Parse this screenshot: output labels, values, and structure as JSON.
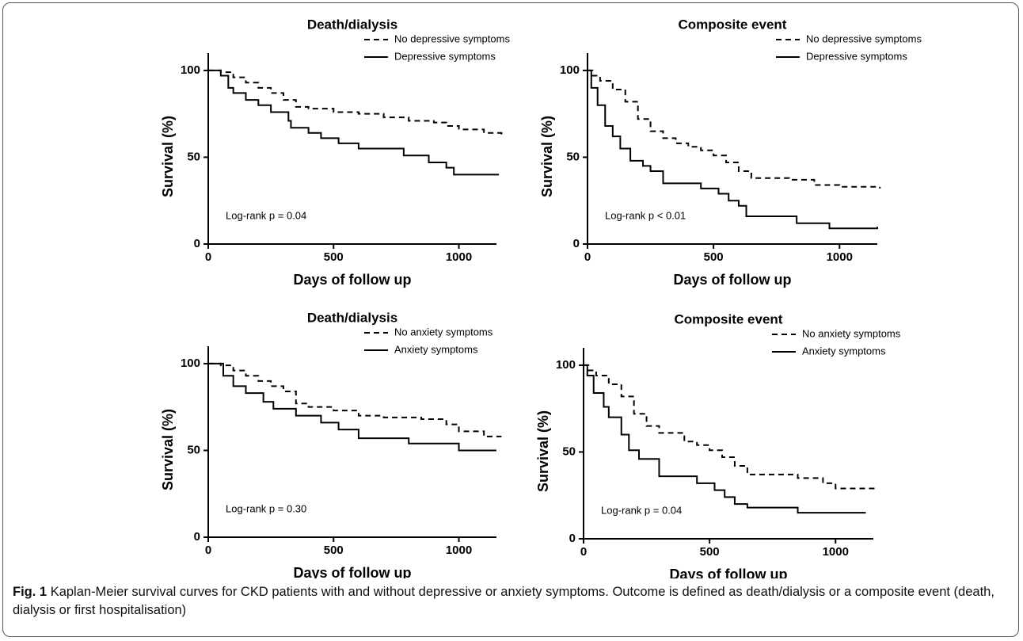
{
  "chart_data": [
    {
      "type": "line",
      "step": "post",
      "title": "Death/dialysis",
      "xlabel": "Days of follow up",
      "ylabel": "Survival (%)",
      "annotation": "Log-rank p = 0.04",
      "xlim": [
        0,
        1150
      ],
      "ylim": [
        0,
        110
      ],
      "xticks": [
        0,
        500,
        1000
      ],
      "yticks": [
        0,
        50,
        100
      ],
      "series": [
        {
          "name": "No depressive symptoms",
          "color": "#000000",
          "dashed": true,
          "x": [
            0,
            50,
            100,
            150,
            200,
            250,
            300,
            350,
            400,
            500,
            600,
            700,
            800,
            900,
            950,
            1000,
            1100,
            1170
          ],
          "values": [
            100,
            99,
            96,
            93,
            90,
            87,
            83,
            79,
            78,
            76,
            75,
            73,
            71,
            70,
            68,
            66,
            64,
            63
          ]
        },
        {
          "name": "Depressive symptoms",
          "color": "#000000",
          "dashed": false,
          "x": [
            0,
            50,
            80,
            100,
            150,
            200,
            250,
            320,
            330,
            400,
            450,
            520,
            600,
            780,
            880,
            950,
            980,
            1160
          ],
          "values": [
            100,
            97,
            90,
            87,
            83,
            80,
            76,
            71,
            67,
            64,
            61,
            58,
            55,
            51,
            47,
            44,
            40,
            40
          ]
        }
      ]
    },
    {
      "type": "line",
      "step": "post",
      "title": "Composite event",
      "xlabel": "Days of follow up",
      "ylabel": "Survival (%)",
      "annotation": "Log-rank p < 0.01",
      "xlim": [
        0,
        1150
      ],
      "ylim": [
        0,
        110
      ],
      "xticks": [
        0,
        500,
        1000
      ],
      "yticks": [
        0,
        50,
        100
      ],
      "series": [
        {
          "name": "No depressive symptoms",
          "color": "#000000",
          "dashed": true,
          "x": [
            0,
            20,
            50,
            100,
            150,
            200,
            250,
            300,
            350,
            400,
            450,
            500,
            550,
            600,
            650,
            800,
            900,
            1000,
            1160
          ],
          "values": [
            100,
            97,
            94,
            89,
            82,
            72,
            65,
            61,
            58,
            56,
            54,
            51,
            47,
            42,
            38,
            37,
            34,
            33,
            32
          ]
        },
        {
          "name": "Depressive symptoms",
          "color": "#000000",
          "dashed": false,
          "x": [
            0,
            15,
            40,
            70,
            100,
            130,
            170,
            220,
            250,
            300,
            450,
            520,
            560,
            600,
            630,
            830,
            960,
            1150
          ],
          "values": [
            100,
            90,
            80,
            68,
            62,
            55,
            48,
            45,
            42,
            35,
            32,
            29,
            25,
            22,
            16,
            12,
            9,
            10
          ]
        }
      ]
    },
    {
      "type": "line",
      "step": "post",
      "title": "Death/dialysis",
      "xlabel": "Days of follow up",
      "ylabel": "Survival (%)",
      "annotation": "Log-rank p = 0.30",
      "xlim": [
        0,
        1150
      ],
      "ylim": [
        0,
        110
      ],
      "xticks": [
        0,
        500,
        1000
      ],
      "yticks": [
        0,
        50,
        100
      ],
      "series": [
        {
          "name": "No anxiety symptoms",
          "color": "#000000",
          "dashed": true,
          "x": [
            0,
            50,
            100,
            150,
            200,
            250,
            300,
            350,
            400,
            500,
            600,
            700,
            850,
            950,
            1000,
            1100,
            1170
          ],
          "values": [
            100,
            99,
            96,
            93,
            90,
            87,
            84,
            77,
            75,
            73,
            70,
            69,
            68,
            65,
            61,
            58,
            58
          ]
        },
        {
          "name": "Anxiety symptoms",
          "color": "#000000",
          "dashed": false,
          "x": [
            0,
            60,
            100,
            150,
            220,
            260,
            350,
            450,
            520,
            600,
            800,
            1000,
            1150
          ],
          "values": [
            100,
            93,
            87,
            83,
            78,
            74,
            70,
            66,
            62,
            57,
            54,
            50,
            50
          ]
        }
      ]
    },
    {
      "type": "line",
      "step": "post",
      "title": "Composite event",
      "xlabel": "Days of follow up",
      "ylabel": "Survival (%)",
      "annotation": "Log-rank p = 0.04",
      "xlim": [
        0,
        1150
      ],
      "ylim": [
        0,
        110
      ],
      "xticks": [
        0,
        500,
        1000
      ],
      "yticks": [
        0,
        50,
        100
      ],
      "series": [
        {
          "name": "No anxiety symptoms",
          "color": "#000000",
          "dashed": true,
          "x": [
            0,
            20,
            50,
            100,
            150,
            200,
            250,
            300,
            400,
            450,
            500,
            550,
            600,
            650,
            850,
            950,
            1000,
            1170
          ],
          "values": [
            100,
            97,
            94,
            89,
            82,
            72,
            65,
            61,
            56,
            54,
            51,
            47,
            42,
            37,
            35,
            32,
            29,
            29
          ]
        },
        {
          "name": "Anxiety symptoms",
          "color": "#000000",
          "dashed": false,
          "x": [
            0,
            15,
            40,
            80,
            100,
            150,
            180,
            220,
            300,
            450,
            520,
            560,
            600,
            650,
            850,
            1120
          ],
          "values": [
            100,
            94,
            84,
            76,
            70,
            60,
            51,
            46,
            36,
            32,
            28,
            24,
            20,
            18,
            15,
            15
          ]
        }
      ]
    }
  ],
  "caption": {
    "label": "Fig. 1",
    "text": "Kaplan-Meier survival curves for CKD patients with and without depressive or anxiety symptoms. Outcome is defined as death/dialysis or a composite event (death, dialysis or first hospitalisation)"
  }
}
